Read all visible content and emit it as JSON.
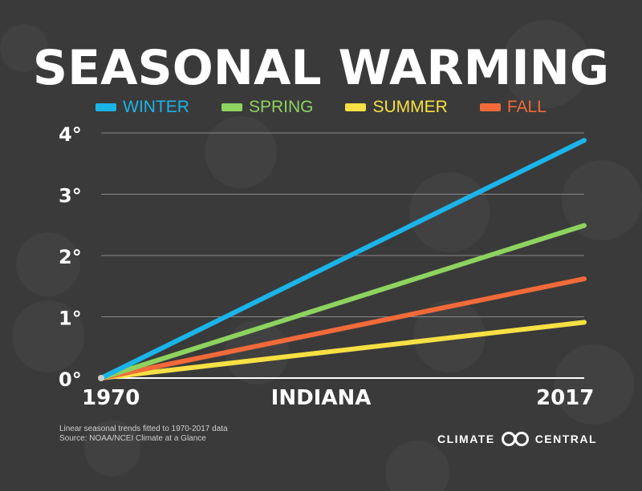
{
  "colors": {
    "background": "#3a3a3a",
    "winter": "#1bb4e8",
    "spring": "#8dd35f",
    "summer": "#f6e043",
    "fall": "#f26a3a"
  },
  "title": "SEASONAL WARMING",
  "chart_data": {
    "type": "line",
    "title": "SEASONAL WARMING",
    "xlabel": "INDIANA",
    "ylabel": "",
    "x": [
      1970,
      2017
    ],
    "xlim": [
      1970,
      2017
    ],
    "ylim": [
      0,
      4
    ],
    "yticks": [
      "0°",
      "1°",
      "2°",
      "3°",
      "4°"
    ],
    "xticks": [
      "1970",
      "2017"
    ],
    "grid": true,
    "legend_position": "top",
    "series": [
      {
        "name": "WINTER",
        "values": [
          0,
          3.88
        ],
        "color": "#1bb4e8"
      },
      {
        "name": "SPRING",
        "values": [
          0,
          2.49
        ],
        "color": "#8dd35f"
      },
      {
        "name": "SUMMER",
        "values": [
          0,
          0.91
        ],
        "color": "#f6e043"
      },
      {
        "name": "FALL",
        "values": [
          0,
          1.62
        ],
        "color": "#f26a3a"
      }
    ]
  },
  "footnote": {
    "line1": "Linear seasonal trends fitted to 1970-2017 data",
    "line2": "Source: NOAA/NCEI Climate at a Glance"
  },
  "logo": {
    "left": "CLIMATE",
    "right": "CENTRAL"
  }
}
